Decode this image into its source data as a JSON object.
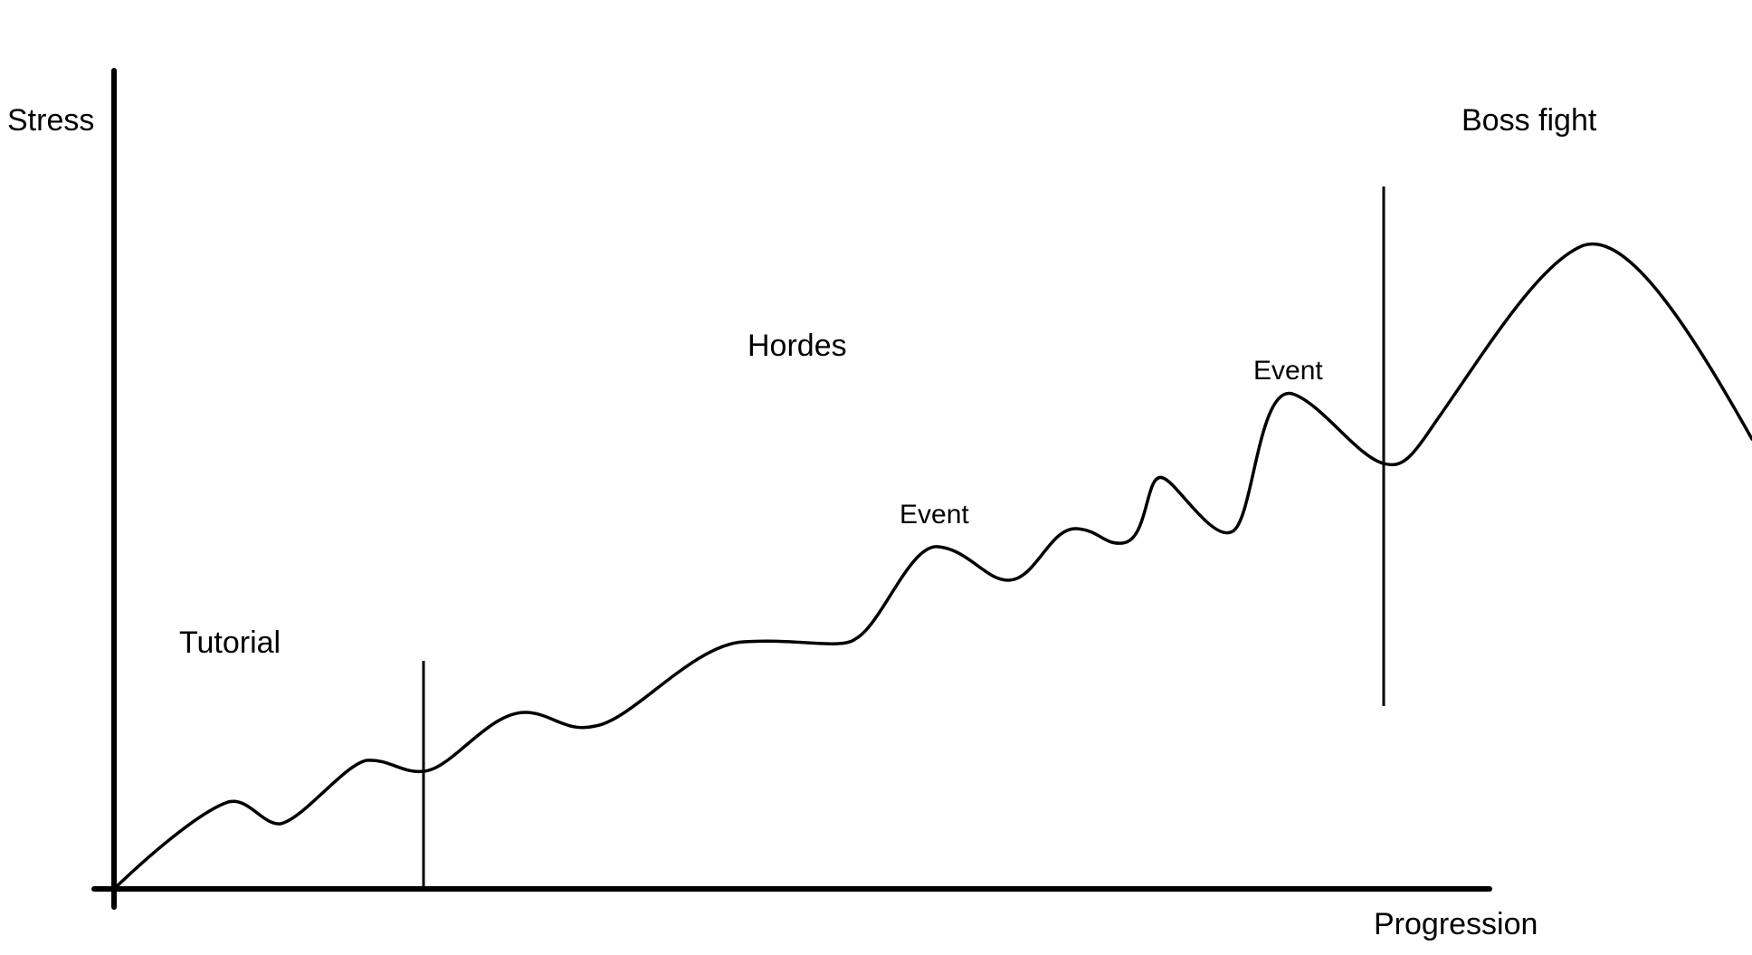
{
  "labels": {
    "y_axis": "Stress",
    "x_axis": "Progression",
    "tutorial": "Tutorial",
    "hordes": "Hordes",
    "boss_fight": "Boss fight",
    "event_1": "Event",
    "event_2": "Event"
  },
  "colors": {
    "stroke": "#000000",
    "background": "#ffffff"
  }
}
